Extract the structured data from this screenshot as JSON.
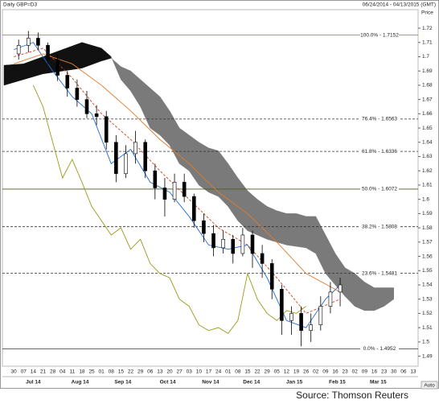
{
  "chart_data": {
    "type": "candlestick",
    "title": "Daily GBP=D3",
    "date_range": "06/24/2014 - 04/13/2015 (GMT)",
    "y_axis_label": "Price",
    "source": "Source: Thomson Reuters",
    "button": "Auto",
    "xlim": [
      -1,
      41.5
    ],
    "ylim": [
      1.483,
      1.733
    ],
    "yticks": [
      1.72,
      1.71,
      1.7,
      1.69,
      1.68,
      1.67,
      1.66,
      1.65,
      1.64,
      1.63,
      1.62,
      1.61,
      1.6,
      1.59,
      1.58,
      1.57,
      1.56,
      1.55,
      1.54,
      1.53,
      1.52,
      1.51,
      1.5,
      1.49
    ],
    "day_labels": [
      "30",
      "07",
      "14",
      "21",
      "28",
      "04",
      "11",
      "18",
      "25",
      "01",
      "08",
      "15",
      "22",
      "29",
      "06",
      "13",
      "20",
      "27",
      "03",
      "10",
      "17",
      "24",
      "01",
      "08",
      "15",
      "22",
      "29",
      "05",
      "12",
      "19",
      "26",
      "02",
      "09",
      "16",
      "23",
      "02",
      "09",
      "16",
      "23",
      "30",
      "06",
      "13"
    ],
    "months": [
      {
        "label": "Jul 14",
        "x": 2
      },
      {
        "label": "Aug 14",
        "x": 6.8
      },
      {
        "label": "Sep 14",
        "x": 11.2
      },
      {
        "label": "Oct 14",
        "x": 15.8
      },
      {
        "label": "Nov 14",
        "x": 20.2
      },
      {
        "label": "Dec 14",
        "x": 24.4
      },
      {
        "label": "Jan 15",
        "x": 28.8
      },
      {
        "label": "Feb 15",
        "x": 33.2
      },
      {
        "label": "Mar 15",
        "x": 37.4
      }
    ],
    "candles": {
      "x": [
        0.5,
        1.5,
        2.5,
        3.5,
        4.5,
        5.5,
        6.5,
        7.5,
        8.5,
        9.5,
        10.5,
        11.5,
        12.5,
        13.5,
        14.5,
        15.5,
        16.5,
        17.5,
        18.5,
        19.5,
        20.5,
        21.5,
        22.5,
        23.5,
        24.5,
        25.5,
        26.5,
        27.5,
        28.5,
        29.5,
        30.5,
        31.5,
        32.5,
        33.5
      ],
      "open": [
        1.702,
        1.708,
        1.713,
        1.708,
        1.698,
        1.687,
        1.678,
        1.67,
        1.66,
        1.658,
        1.64,
        1.618,
        1.632,
        1.64,
        1.62,
        1.608,
        1.6,
        1.612,
        1.602,
        1.585,
        1.576,
        1.566,
        1.572,
        1.562,
        1.575,
        1.562,
        1.555,
        1.537,
        1.515,
        1.52,
        1.508,
        1.512,
        1.525,
        1.535
      ],
      "high": [
        1.712,
        1.718,
        1.717,
        1.71,
        1.702,
        1.69,
        1.684,
        1.676,
        1.666,
        1.662,
        1.645,
        1.638,
        1.648,
        1.642,
        1.625,
        1.615,
        1.618,
        1.618,
        1.604,
        1.59,
        1.582,
        1.578,
        1.575,
        1.58,
        1.578,
        1.568,
        1.558,
        1.54,
        1.525,
        1.525,
        1.52,
        1.532,
        1.542,
        1.545
      ],
      "low": [
        1.698,
        1.703,
        1.705,
        1.695,
        1.683,
        1.672,
        1.665,
        1.657,
        1.652,
        1.635,
        1.612,
        1.615,
        1.625,
        1.615,
        1.6,
        1.588,
        1.598,
        1.598,
        1.58,
        1.57,
        1.56,
        1.562,
        1.555,
        1.56,
        1.552,
        1.545,
        1.53,
        1.505,
        1.505,
        1.497,
        1.5,
        1.508,
        1.52,
        1.525
      ],
      "close": [
        1.708,
        1.713,
        1.708,
        1.698,
        1.687,
        1.678,
        1.67,
        1.66,
        1.658,
        1.64,
        1.618,
        1.632,
        1.64,
        1.62,
        1.608,
        1.6,
        1.612,
        1.602,
        1.585,
        1.576,
        1.566,
        1.572,
        1.562,
        1.575,
        1.562,
        1.555,
        1.537,
        1.515,
        1.52,
        1.508,
        1.512,
        1.525,
        1.535,
        1.54
      ]
    },
    "series": [
      {
        "color": "#1f6fd6",
        "dash": false,
        "x": [
          0,
          2,
          4,
          6,
          8,
          10,
          12,
          14,
          16,
          18,
          20,
          22,
          24,
          26,
          28,
          30,
          32,
          33.5
        ],
        "values": [
          1.705,
          1.71,
          1.69,
          1.672,
          1.66,
          1.625,
          1.635,
          1.612,
          1.605,
          1.588,
          1.568,
          1.565,
          1.568,
          1.545,
          1.515,
          1.51,
          1.53,
          1.54
        ]
      },
      {
        "color": "#d23c1e",
        "dash": true,
        "x": [
          0,
          3,
          6,
          9,
          12,
          15,
          18,
          21,
          24,
          27,
          30,
          33.5
        ],
        "values": [
          1.7,
          1.706,
          1.685,
          1.66,
          1.642,
          1.62,
          1.6,
          1.58,
          1.568,
          1.545,
          1.52,
          1.53
        ]
      },
      {
        "color": "#e07a2a",
        "dash": false,
        "x": [
          0,
          3,
          6,
          9,
          12,
          15,
          18,
          21,
          24,
          27,
          30,
          33.5
        ],
        "values": [
          1.695,
          1.702,
          1.695,
          1.68,
          1.662,
          1.642,
          1.625,
          1.605,
          1.59,
          1.57,
          1.548,
          1.535
        ]
      },
      {
        "color": "#9a9a1a",
        "dash": false,
        "x": [
          2,
          3,
          4,
          5,
          6,
          7,
          8,
          9,
          10,
          11,
          12,
          13,
          14,
          15,
          16,
          17,
          18,
          19,
          20,
          21,
          22,
          23,
          24,
          25,
          26,
          27,
          28,
          29,
          30
        ],
        "values": [
          1.68,
          1.665,
          1.64,
          1.615,
          1.628,
          1.612,
          1.595,
          1.585,
          1.575,
          1.58,
          1.565,
          1.572,
          1.555,
          1.548,
          1.545,
          1.53,
          1.525,
          1.512,
          1.508,
          1.51,
          1.506,
          1.515,
          1.548,
          1.53,
          1.52,
          1.515,
          1.522,
          1.52,
          1.525
        ]
      }
    ],
    "cloud": {
      "up_color": "#111111",
      "down_color": "#7a7a7a",
      "x": [
        -1,
        1,
        3,
        5,
        7,
        9,
        10,
        11,
        12,
        13,
        14,
        15,
        16,
        17,
        18,
        19,
        20,
        21,
        22,
        23,
        24,
        25,
        26,
        27,
        28,
        29,
        30,
        31,
        32,
        33,
        34,
        35,
        36,
        37,
        38,
        39
      ],
      "span_a": [
        1.694,
        1.695,
        1.7,
        1.705,
        1.71,
        1.706,
        1.7,
        1.684,
        1.676,
        1.665,
        1.65,
        1.645,
        1.638,
        1.625,
        1.62,
        1.61,
        1.605,
        1.602,
        1.595,
        1.585,
        1.578,
        1.575,
        1.572,
        1.57,
        1.568,
        1.567,
        1.566,
        1.562,
        1.548,
        1.54,
        1.532,
        1.525,
        1.522,
        1.522,
        1.525,
        1.53
      ],
      "span_b": [
        1.68,
        1.684,
        1.688,
        1.69,
        1.692,
        1.697,
        1.699,
        1.693,
        1.69,
        1.684,
        1.678,
        1.672,
        1.662,
        1.65,
        1.645,
        1.64,
        1.636,
        1.634,
        1.625,
        1.615,
        1.606,
        1.6,
        1.595,
        1.592,
        1.59,
        1.59,
        1.588,
        1.588,
        1.575,
        1.562,
        1.552,
        1.548,
        1.542,
        1.538,
        1.538,
        1.538
      ]
    },
    "fib_levels": [
      {
        "value": 1.7152,
        "label": "100.0% - 1.7152",
        "style": "solid",
        "color": "#9a9a3a"
      },
      {
        "value": 1.6563,
        "label": "76.4% - 1.6563",
        "style": "dashed",
        "color": "#333333"
      },
      {
        "value": 1.6336,
        "label": "61.8% - 1.6336",
        "style": "dashed",
        "color": "#333333"
      },
      {
        "value": 1.6072,
        "label": "50.0% - 1.6072",
        "style": "solid",
        "color": "#4a5a1a"
      },
      {
        "value": 1.5808,
        "label": "38.2% - 1.5808",
        "style": "dashed",
        "color": "#333333"
      },
      {
        "value": 1.5481,
        "label": "23.6% - 1.5481",
        "style": "dashed",
        "color": "#333333"
      },
      {
        "value": 1.4952,
        "label": "0.0% - 1.4952",
        "style": "solid",
        "color": "#333333"
      }
    ]
  }
}
